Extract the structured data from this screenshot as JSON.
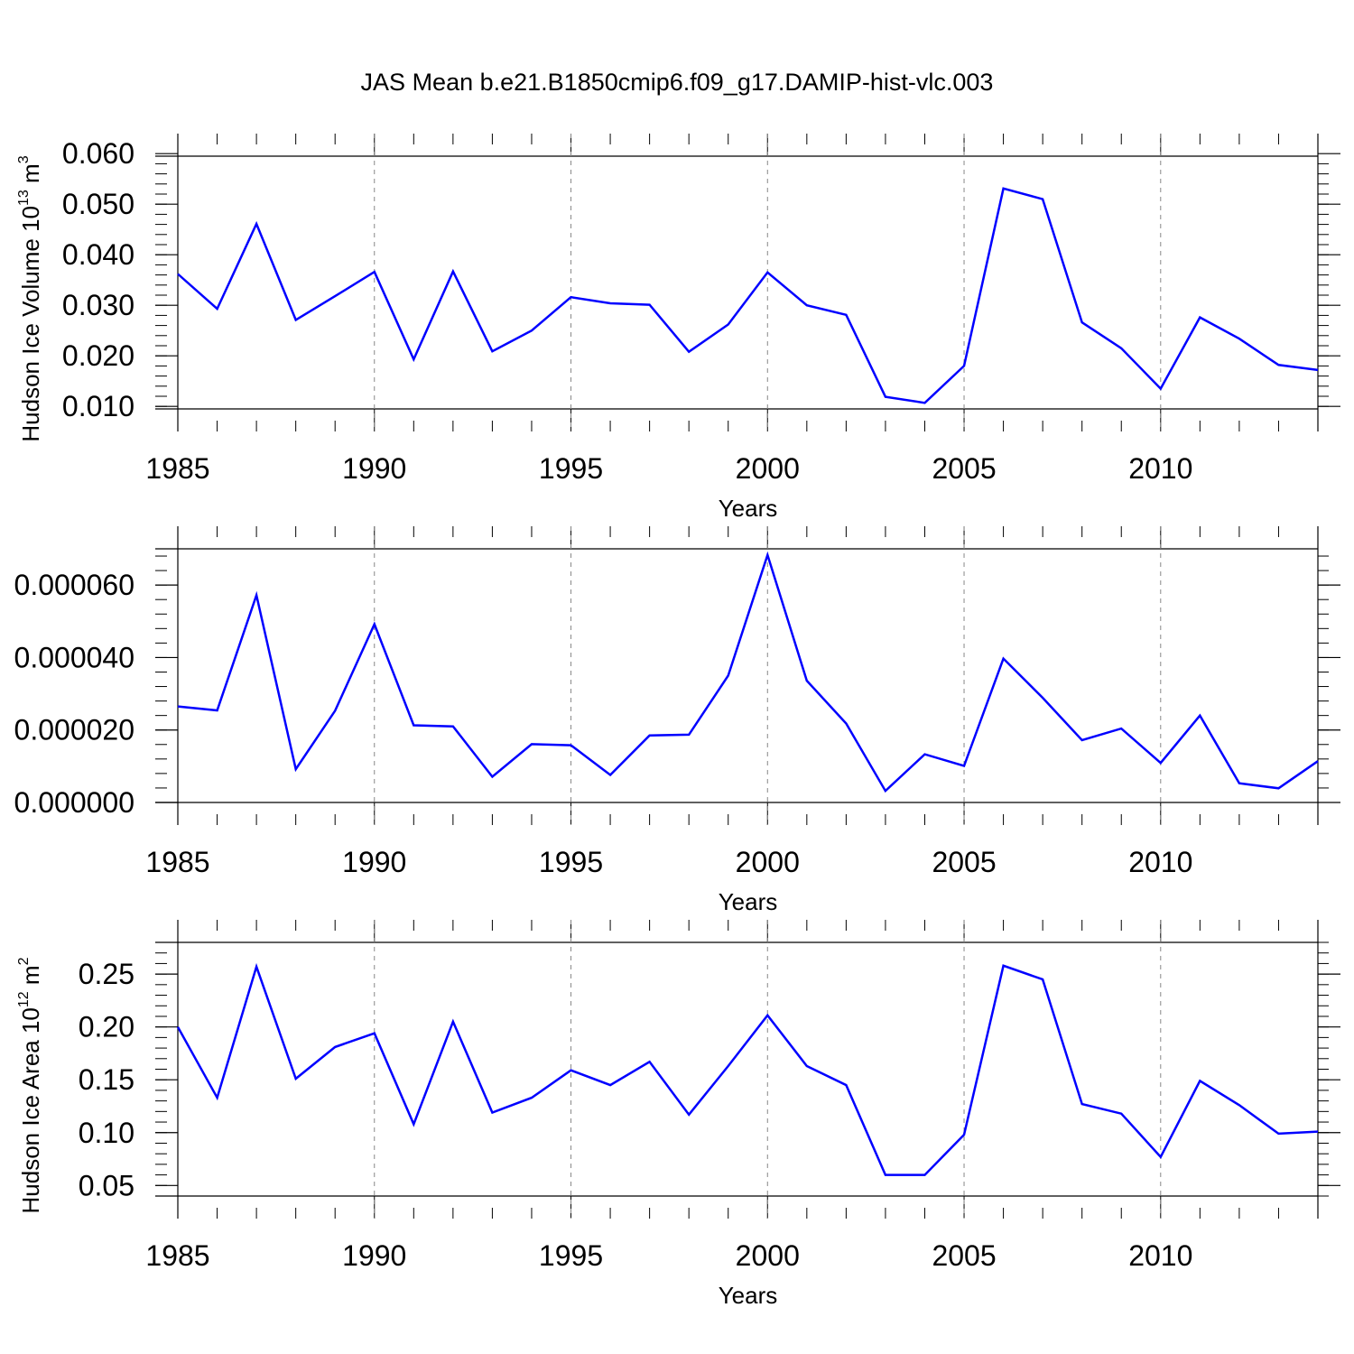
{
  "title": "JAS Mean b.e21.B1850cmip6.f09_g17.DAMIP-hist-vlc.003",
  "colors": {
    "series": "#0000ff",
    "axis": "#000000",
    "grid": "#888888"
  },
  "chart_data": [
    {
      "type": "line",
      "xlabel": "Years",
      "ylabel": {
        "text": "Hudson Ice Volume 10",
        "exp": "13",
        "unit": " m",
        "unit_exp": "3"
      },
      "xlim": [
        1985,
        2014
      ],
      "ylim": [
        0.0095,
        0.0595
      ],
      "x_ticks": [
        1985,
        1990,
        1995,
        2000,
        2005,
        2010
      ],
      "y_ticks": [
        0.01,
        0.02,
        0.03,
        0.04,
        0.05
      ],
      "y_tick_labels": [
        "0.010",
        "0.020",
        "0.030",
        "0.040",
        "0.050",
        "0.060"
      ],
      "y_tick_values": [
        0.01,
        0.02,
        0.03,
        0.04,
        0.05,
        0.06
      ],
      "x": [
        1985,
        1986,
        1987,
        1988,
        1989,
        1990,
        1991,
        1992,
        1993,
        1994,
        1995,
        1996,
        1997,
        1998,
        1999,
        2000,
        2001,
        2002,
        2003,
        2004,
        2005,
        2006,
        2007,
        2008,
        2009,
        2010,
        2011,
        2012,
        2013,
        2014
      ],
      "y": [
        0.0362,
        0.0293,
        0.0461,
        0.0271,
        0.0318,
        0.0366,
        0.0193,
        0.0367,
        0.0209,
        0.025,
        0.0316,
        0.0304,
        0.0301,
        0.0208,
        0.0262,
        0.0365,
        0.03,
        0.0281,
        0.0119,
        0.0107,
        0.018,
        0.0531,
        0.051,
        0.0266,
        0.0215,
        0.0135,
        0.0276,
        0.0234,
        0.0182,
        0.0172
      ],
      "grid": "dashed vertical at major x ticks"
    },
    {
      "type": "line",
      "xlabel": "Years",
      "ylabel": null,
      "xlim": [
        1985,
        2014
      ],
      "ylim": [
        0.0,
        7e-05
      ],
      "y_tick_labels": [
        "0.000000",
        "0.000020",
        "0.000040",
        "0.000060"
      ],
      "y_tick_values": [
        0.0,
        2e-05,
        4e-05,
        6e-05
      ],
      "x": [
        1985,
        1986,
        1987,
        1988,
        1989,
        1990,
        1991,
        1992,
        1993,
        1994,
        1995,
        1996,
        1997,
        1998,
        1999,
        2000,
        2001,
        2002,
        2003,
        2004,
        2005,
        2006,
        2007,
        2008,
        2009,
        2010,
        2011,
        2012,
        2013,
        2014
      ],
      "y": [
        2.65e-05,
        2.54e-05,
        5.72e-05,
        9.2e-06,
        2.53e-05,
        4.92e-05,
        2.13e-05,
        2.1e-05,
        7.1e-06,
        1.61e-05,
        1.58e-05,
        7.6e-06,
        1.85e-05,
        1.87e-05,
        3.5e-05,
        6.83e-05,
        3.36e-05,
        2.18e-05,
        3.2e-06,
        1.33e-05,
        1.01e-05,
        3.97e-05,
        2.89e-05,
        1.72e-05,
        2.04e-05,
        1.09e-05,
        2.4e-05,
        5.3e-06,
        3.9e-06,
        1.14e-05
      ],
      "grid": "dashed vertical at major x ticks"
    },
    {
      "type": "line",
      "xlabel": "Years",
      "ylabel": {
        "text": "Hudson Ice Area 10",
        "exp": "12",
        "unit": " m",
        "unit_exp": "2"
      },
      "xlim": [
        1985,
        2014
      ],
      "ylim": [
        0.04,
        0.28
      ],
      "y_tick_labels": [
        "0.05",
        "0.10",
        "0.15",
        "0.20",
        "0.25"
      ],
      "y_tick_values": [
        0.05,
        0.1,
        0.15,
        0.2,
        0.25
      ],
      "x": [
        1985,
        1986,
        1987,
        1988,
        1989,
        1990,
        1991,
        1992,
        1993,
        1994,
        1995,
        1996,
        1997,
        1998,
        1999,
        2000,
        2001,
        2002,
        2003,
        2004,
        2005,
        2006,
        2007,
        2008,
        2009,
        2010,
        2011,
        2012,
        2013,
        2014
      ],
      "y": [
        0.2,
        0.133,
        0.257,
        0.151,
        0.181,
        0.194,
        0.108,
        0.205,
        0.119,
        0.133,
        0.159,
        0.145,
        0.167,
        0.117,
        0.163,
        0.211,
        0.163,
        0.145,
        0.06,
        0.06,
        0.098,
        0.258,
        0.245,
        0.127,
        0.118,
        0.077,
        0.149,
        0.126,
        0.099,
        0.101
      ],
      "grid": "dashed vertical at major x ticks"
    }
  ]
}
